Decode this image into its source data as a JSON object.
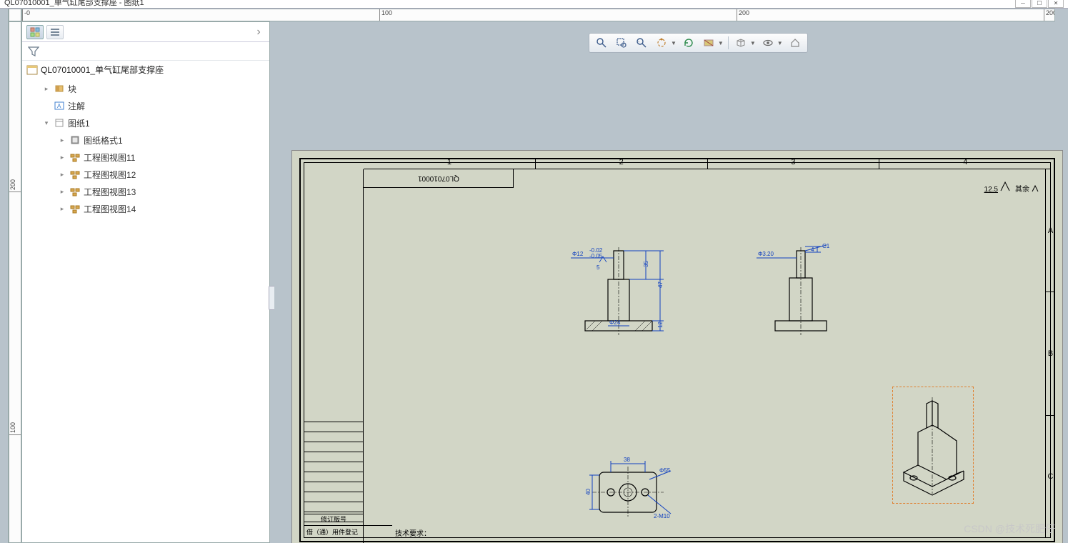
{
  "window": {
    "title": "QL07010001_单气缸尾部支撑座 - 图纸1"
  },
  "rulers": {
    "h": [
      "-0",
      "100",
      "200",
      "200"
    ],
    "v": [
      "200",
      "100"
    ]
  },
  "sidebar": {
    "root": "QL07010001_单气缸尾部支撑座",
    "items": [
      {
        "label": "块",
        "icon": "block",
        "depth": 1,
        "arrow": "▸"
      },
      {
        "label": "注解",
        "icon": "annot",
        "depth": 1,
        "arrow": ""
      },
      {
        "label": "图纸1",
        "icon": "sheet",
        "depth": 1,
        "arrow": "▾"
      },
      {
        "label": "图纸格式1",
        "icon": "format",
        "depth": 2,
        "arrow": "▸"
      },
      {
        "label": "工程图视图11",
        "icon": "view",
        "depth": 2,
        "arrow": "▸"
      },
      {
        "label": "工程图视图12",
        "icon": "view",
        "depth": 2,
        "arrow": "▸"
      },
      {
        "label": "工程图视图13",
        "icon": "view",
        "depth": 2,
        "arrow": "▸"
      },
      {
        "label": "工程图视图14",
        "icon": "view",
        "depth": 2,
        "arrow": "▸"
      }
    ]
  },
  "toolbar": {
    "buttons": [
      "zoom-fit",
      "zoom-area",
      "zoom-prev",
      "rotate",
      "refresh",
      "section",
      "box",
      "eye",
      "home"
    ]
  },
  "sheet": {
    "zones_h": [
      "1",
      "2",
      "3",
      "4"
    ],
    "zones_v": [
      "A",
      "B",
      "C"
    ],
    "partno_rot": "QL07010001",
    "surface_val": "12.5",
    "surface_suffix": "其余",
    "rev_label": "修订版号",
    "borrow_label": "借（通）用件登记",
    "tech_req": "技术要求："
  },
  "views": {
    "front": {
      "d1": "Φ12",
      "d1_tol_up": "-0.02",
      "d1_tol_low": "-0.05",
      "d2": "Φ24",
      "d3": "5",
      "h1": "35",
      "h2": "47",
      "h3": "12"
    },
    "side": {
      "d1": "Φ3.20",
      "chamfer": "4",
      "cnote": "C1"
    },
    "top": {
      "w": "38",
      "h": "40",
      "d1": "Φ55",
      "holes": "2-M10"
    }
  },
  "watermark": "CSDN @技术死肥仔",
  "colors": {
    "bg": "#b8c3cb",
    "paper": "#d2d6c6",
    "dim": "#1040c0",
    "sel": "#e08030"
  }
}
